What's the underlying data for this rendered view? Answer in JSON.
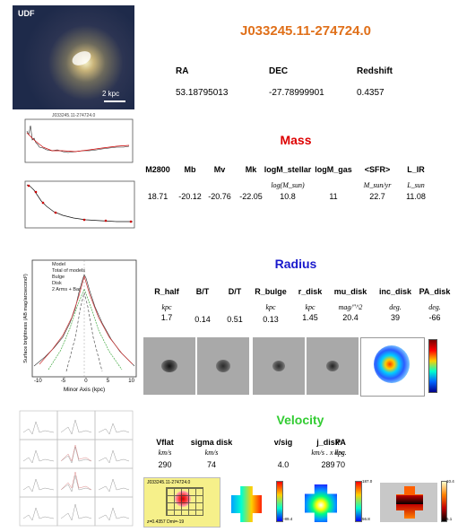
{
  "object": {
    "name": "J033245.11-274724.0",
    "image_label": "UDF",
    "scale_label": "2 kpc"
  },
  "coords": {
    "headers": [
      "RA",
      "DEC",
      "Redshift"
    ],
    "values": [
      "53.18795013",
      "-27.78999901",
      "0.4357"
    ]
  },
  "mass": {
    "title": "Mass",
    "color": "#dd0000",
    "columns": [
      {
        "header": "M2800",
        "unit": "",
        "value": "18.71"
      },
      {
        "header": "Mb",
        "unit": "",
        "value": "-20.12"
      },
      {
        "header": "Mv",
        "unit": "",
        "value": "-20.76"
      },
      {
        "header": "Mk",
        "unit": "",
        "value": "-22.05"
      },
      {
        "header": "logM_stellar",
        "unit": "log(M_sun)",
        "value": "10.8"
      },
      {
        "header": "logM_gas",
        "unit": "",
        "value": "11"
      },
      {
        "header": "<SFR>",
        "unit": "M_sun/yr",
        "value": "22.7"
      },
      {
        "header": "L_IR",
        "unit": "L_sun",
        "value": "11.08"
      }
    ]
  },
  "radius": {
    "title": "Radius",
    "color": "#1a1acc",
    "columns": [
      {
        "header": "R_half",
        "unit": "kpc",
        "value": "1.7"
      },
      {
        "header": "B/T",
        "unit": "",
        "value": "0.14"
      },
      {
        "header": "D/T",
        "unit": "",
        "value": "0.51"
      },
      {
        "header": "R_bulge",
        "unit": "kpc",
        "value": "0.13"
      },
      {
        "header": "r_disk",
        "unit": "kpc",
        "value": "1.45"
      },
      {
        "header": "mu_disk",
        "unit": "mag/\"^2",
        "value": "20.4"
      },
      {
        "header": "inc_disk",
        "unit": "deg.",
        "value": "39"
      },
      {
        "header": "PA_disk",
        "unit": "deg.",
        "value": "-66"
      }
    ],
    "profile_plot": {
      "ylabel": "Surface brightness (AB mag/arcsecond²)",
      "xlabel": "Minor Axis (kpc)",
      "legend": [
        "Model",
        "Total of models",
        "Bulge",
        "Disk",
        "2 Arms + Bar"
      ],
      "xticks": [
        "-10",
        "-5",
        "0",
        "5",
        "10"
      ]
    }
  },
  "velocity": {
    "title": "Velocity",
    "color": "#33cc33",
    "columns": [
      {
        "header": "Vflat",
        "unit": "km/s",
        "value": "290"
      },
      {
        "header": "sigma disk",
        "unit": "km/s",
        "value": "74"
      },
      {
        "header": "v/sig",
        "unit": "",
        "value": "4.0"
      },
      {
        "header": "j_disk",
        "unit": "km/s . x kpc",
        "value": "289"
      },
      {
        "header": "PA",
        "unit": "deg.",
        "value": "70"
      }
    ],
    "map1_label": "J033245.11-274724.0",
    "map1_footer": "z=0.4357  Dmi=-19",
    "cbar_top": "187.0",
    "cbar_bottom": "56.8",
    "cbar2_top": "10.4",
    "cbar2_bottom": "5.1",
    "cbar0_top": "",
    "cbar0_bottom": "-89.4"
  },
  "sed_plot": {
    "title": "J033245.11-274724.0"
  }
}
